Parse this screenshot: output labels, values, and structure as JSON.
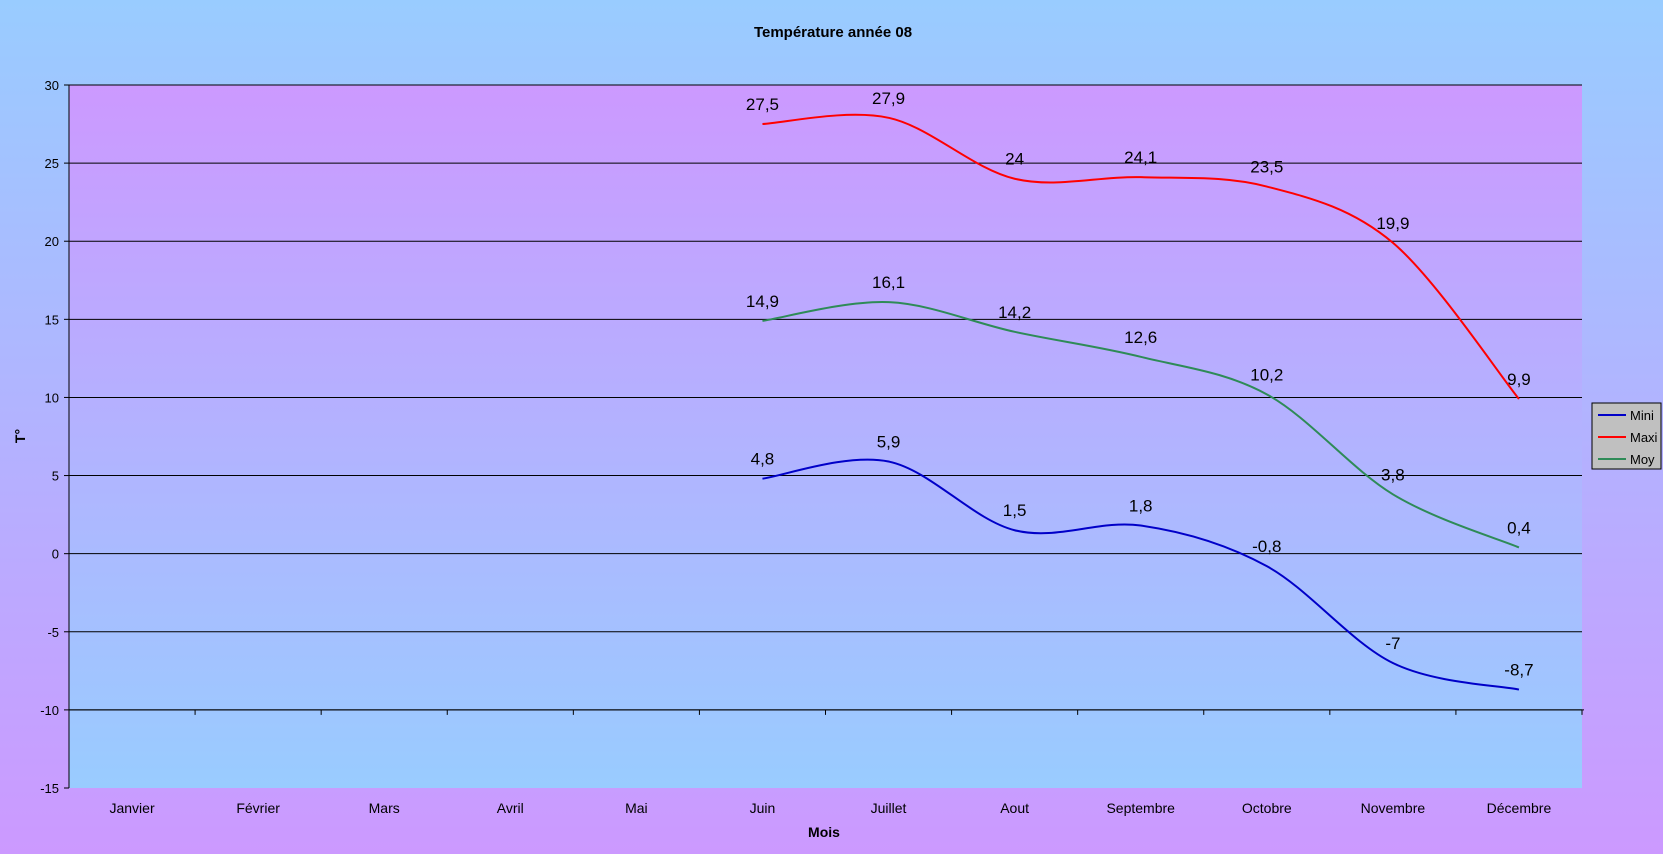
{
  "chart_data": {
    "type": "line",
    "title": "Température année 08",
    "xlabel": "Mois",
    "ylabel": "T°",
    "categories": [
      "Janvier",
      "Février",
      "Mars",
      "Avril",
      "Mai",
      "Juin",
      "Juillet",
      "Aout",
      "Septembre",
      "Octobre",
      "Novembre",
      "Décembre"
    ],
    "ylim": [
      -15,
      30
    ],
    "yticks": [
      "30",
      "25",
      "20",
      "15",
      "10",
      "5",
      "0",
      "-5",
      "-10",
      "-15"
    ],
    "ytick_values": [
      30,
      25,
      20,
      15,
      10,
      5,
      0,
      -5,
      -10,
      -15
    ],
    "grid": true,
    "smooth": true,
    "legend_position": "right",
    "series": [
      {
        "name": "Mini",
        "color": "#0000c8",
        "values": [
          null,
          null,
          null,
          null,
          null,
          4.8,
          5.9,
          1.5,
          1.8,
          -0.8,
          -7,
          -8.7
        ],
        "labels": [
          null,
          null,
          null,
          null,
          null,
          "4,8",
          "5,9",
          "1,5",
          "1,8",
          "-0,8",
          "-7",
          "-8,7"
        ]
      },
      {
        "name": "Maxi",
        "color": "#ff0000",
        "values": [
          null,
          null,
          null,
          null,
          null,
          27.5,
          27.9,
          24,
          24.1,
          23.5,
          19.9,
          9.9
        ],
        "labels": [
          null,
          null,
          null,
          null,
          null,
          "27,5",
          "27,9",
          "24",
          "24,1",
          "23,5",
          "19,9",
          "9,9"
        ]
      },
      {
        "name": "Moy",
        "color": "#2e8b57",
        "values": [
          null,
          null,
          null,
          null,
          null,
          14.9,
          16.1,
          14.2,
          12.6,
          10.2,
          3.8,
          0.4
        ],
        "labels": [
          null,
          null,
          null,
          null,
          null,
          "14,9",
          "16,1",
          "14,2",
          "12,6",
          "10,2",
          "3,8",
          "0,4"
        ]
      }
    ]
  },
  "colors": {
    "page_top": "#99ccff",
    "page_bottom": "#cc99ff",
    "plot_top": "#cc99ff",
    "plot_bottom": "#99ccff",
    "legend_bg": "#c0c0c0"
  }
}
